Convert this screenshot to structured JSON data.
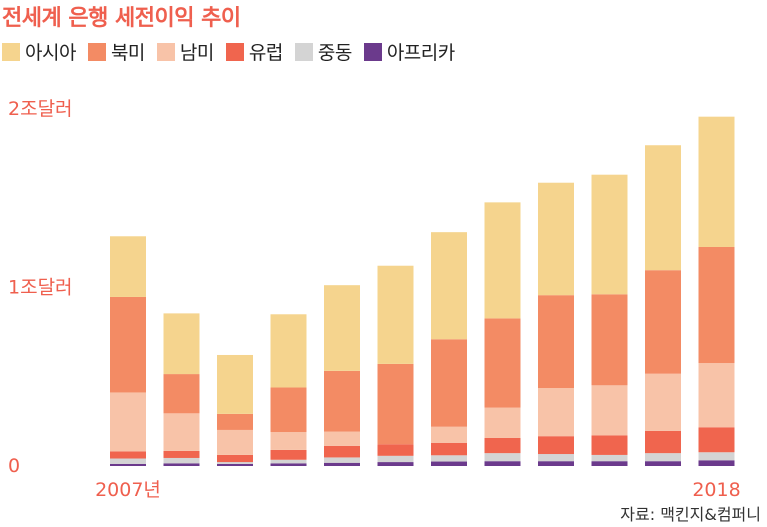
{
  "title": "전세계 은행 세전이익 추이",
  "source": "자료: 맥킨지&컴퍼니",
  "chart_data": {
    "type": "bar",
    "stacked": true,
    "categories": [
      "2007년",
      "",
      "",
      "",
      "",
      "",
      "",
      "",
      "",
      "",
      "",
      "2018"
    ],
    "y_tick_labels": [
      {
        "value": 0,
        "label": "0"
      },
      {
        "value": 1,
        "label": "1조달러"
      },
      {
        "value": 2,
        "label": "2조달러"
      }
    ],
    "ylim": [
      0,
      2
    ],
    "grid": false,
    "legend_position": "top-left",
    "series": [
      {
        "name": "아프리카",
        "color": "#6b3a8c",
        "values": [
          0.012,
          0.015,
          0.012,
          0.015,
          0.018,
          0.022,
          0.025,
          0.027,
          0.027,
          0.027,
          0.027,
          0.032
        ]
      },
      {
        "name": "중동",
        "color": "#d4d4d4",
        "values": [
          0.03,
          0.03,
          0.01,
          0.02,
          0.03,
          0.035,
          0.035,
          0.045,
          0.04,
          0.035,
          0.045,
          0.045
        ]
      },
      {
        "name": "유럽",
        "color": "#f0654e",
        "values": [
          0.04,
          0.04,
          0.04,
          0.055,
          0.065,
          0.065,
          0.07,
          0.085,
          0.1,
          0.11,
          0.125,
          0.14
        ]
      },
      {
        "name": "남미",
        "color": "#f8c3a8",
        "values": [
          0.33,
          0.21,
          0.14,
          0.1,
          0.08,
          0,
          0.09,
          0.17,
          0.27,
          0.28,
          0.32,
          0.36
        ]
      },
      {
        "name": "북미",
        "color": "#f38b64",
        "values": [
          0.535,
          0.22,
          0.09,
          0.25,
          0.34,
          0.45,
          0.49,
          0.5,
          0.52,
          0.51,
          0.58,
          0.65
        ]
      },
      {
        "name": "아시아",
        "color": "#f5d48e",
        "values": [
          0.34,
          0.34,
          0.33,
          0.41,
          0.48,
          0.55,
          0.6,
          0.65,
          0.63,
          0.67,
          0.7,
          0.73
        ]
      }
    ]
  },
  "legend": [
    {
      "name": "아시아",
      "color": "#f5d48e"
    },
    {
      "name": "북미",
      "color": "#f38b64"
    },
    {
      "name": "남미",
      "color": "#f8c3a8"
    },
    {
      "name": "유럽",
      "color": "#f0654e"
    },
    {
      "name": "중동",
      "color": "#d4d4d4"
    },
    {
      "name": "아프리카",
      "color": "#6b3a8c"
    }
  ]
}
